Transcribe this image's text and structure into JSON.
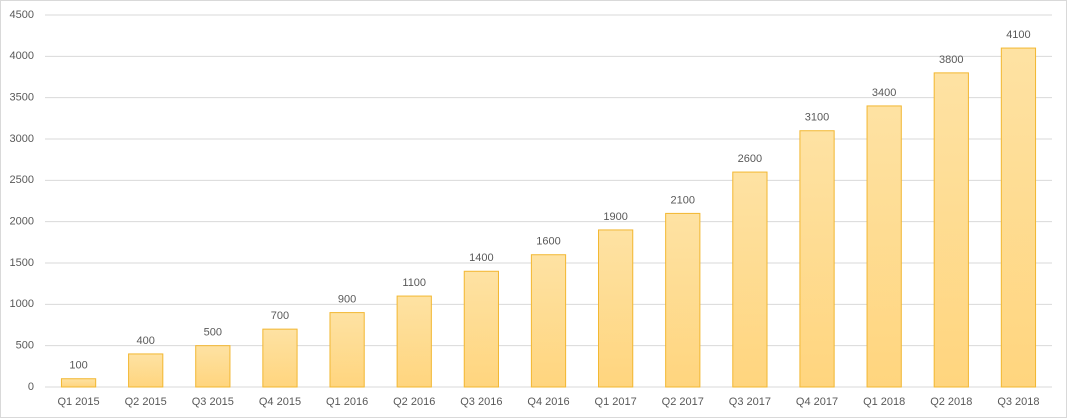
{
  "chart_data": {
    "type": "bar",
    "categories": [
      "Q1 2015",
      "Q2 2015",
      "Q3 2015",
      "Q4 2015",
      "Q1 2016",
      "Q2 2016",
      "Q3 2016",
      "Q4 2016",
      "Q1 2017",
      "Q2 2017",
      "Q3 2017",
      "Q4 2017",
      "Q1 2018",
      "Q2 2018",
      "Q3 2018"
    ],
    "values": [
      100,
      400,
      500,
      700,
      900,
      1100,
      1400,
      1600,
      1900,
      2100,
      2600,
      3100,
      3400,
      3800,
      4100
    ],
    "color": "#f2b731",
    "ylim": [
      0,
      4500
    ],
    "yticks": [
      0,
      500,
      1000,
      1500,
      2000,
      2500,
      3000,
      3500,
      4000,
      4500
    ],
    "grid": true
  }
}
